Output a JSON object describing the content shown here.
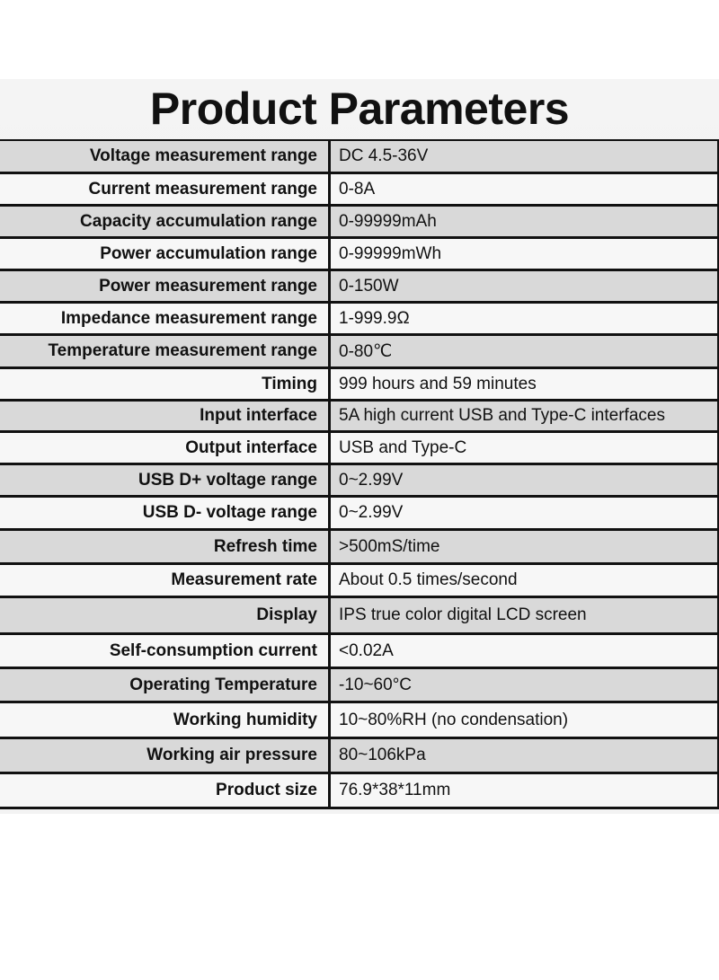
{
  "title": "Product Parameters",
  "rows": [
    {
      "label": "Voltage measurement range",
      "value": "DC 4.5-36V"
    },
    {
      "label": "Current measurement range",
      "value": "0-8A"
    },
    {
      "label": "Capacity accumulation range",
      "value": "0-99999mAh"
    },
    {
      "label": "Power accumulation range",
      "value": "0-99999mWh"
    },
    {
      "label": "Power measurement range",
      "value": "0-150W"
    },
    {
      "label": "Impedance measurement range",
      "value": "1-999.9Ω"
    },
    {
      "label": "Temperature measurement range",
      "value": "0-80℃"
    },
    {
      "label": "Timing",
      "value": "999 hours and 59 minutes"
    },
    {
      "label": "Input interface",
      "value": "5A high current USB and Type-C interfaces"
    },
    {
      "label": "Output interface",
      "value": "USB and Type-C"
    },
    {
      "label": "USB D+ voltage range",
      "value": "0~2.99V"
    },
    {
      "label": "USB D- voltage range",
      "value": "0~2.99V"
    },
    {
      "label": "Refresh time",
      "value": ">500mS/time"
    },
    {
      "label": "Measurement rate",
      "value": "About 0.5 times/second"
    },
    {
      "label": "Display",
      "value": "IPS true color digital LCD screen"
    },
    {
      "label": "Self-consumption current",
      "value": "<0.02A"
    },
    {
      "label": "Operating Temperature",
      "value": "-10~60°C"
    },
    {
      "label": "Working humidity",
      "value": "10~80%RH (no condensation)"
    },
    {
      "label": "Working air pressure",
      "value": "80~106kPa"
    },
    {
      "label": "Product size",
      "value": "76.9*38*11mm"
    }
  ]
}
